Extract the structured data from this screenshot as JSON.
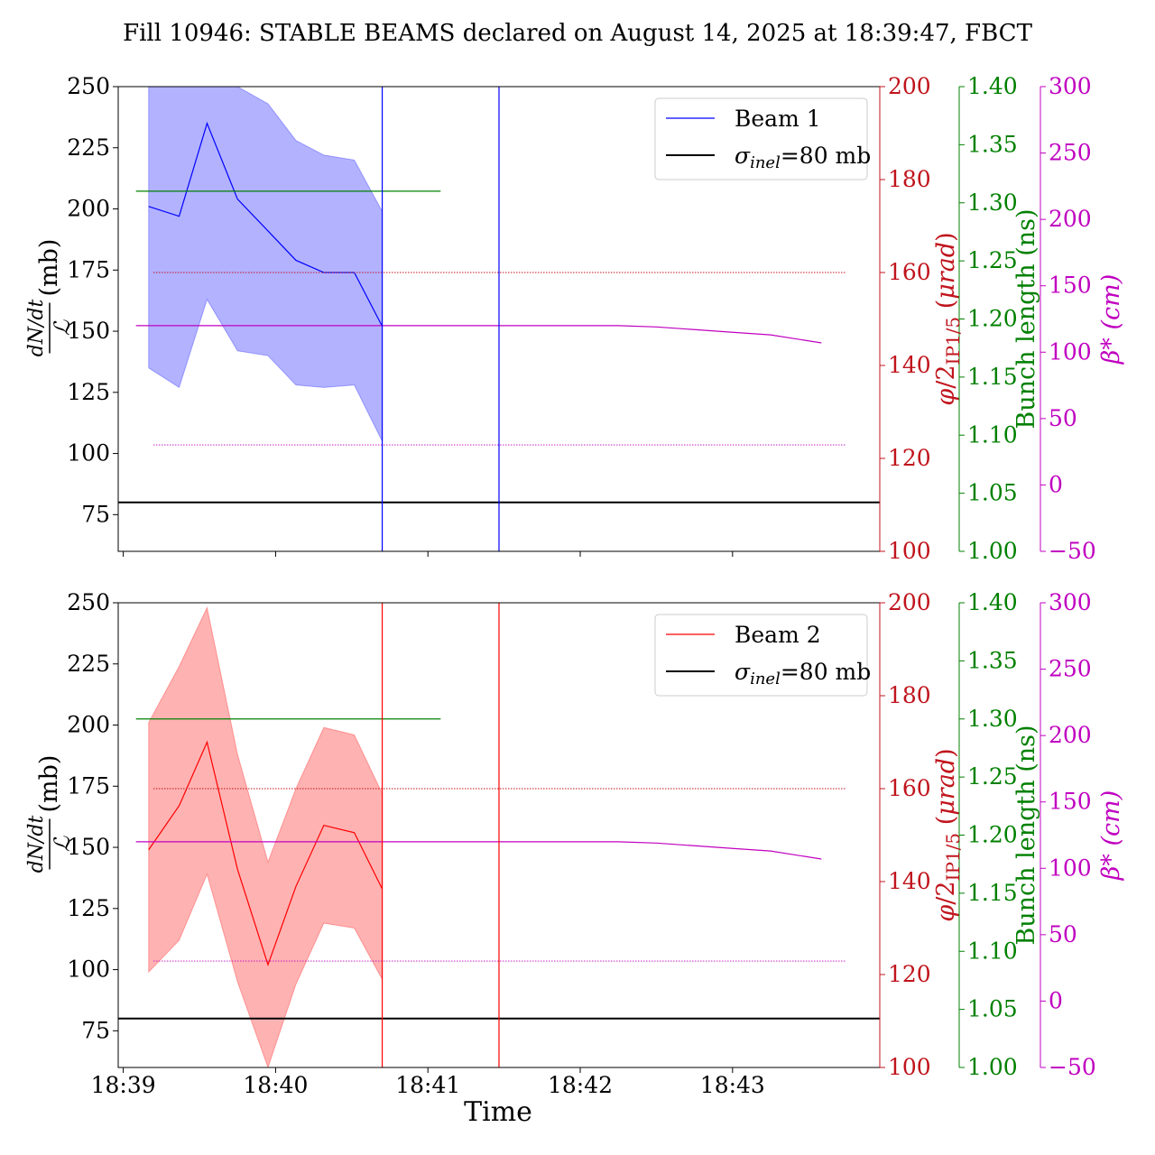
{
  "figure": {
    "title": "Fill 10946: STABLE BEAMS declared on August 14, 2025 at 18:39:47, FBCT"
  },
  "chart_data": [
    {
      "type": "line",
      "panel": "top",
      "xlabel": "",
      "x_ticks": [
        "18:39",
        "18:40",
        "18:41",
        "18:42",
        "18:43"
      ],
      "x_range": [
        "18:38:58",
        "18:43:58"
      ],
      "axes": {
        "left": {
          "label": "dN/dt / ℒ (mb)",
          "ylim": [
            60,
            250
          ],
          "ticks": [
            75,
            100,
            125,
            150,
            175,
            200,
            225,
            250
          ],
          "color": "#000000"
        },
        "right1": {
          "label": "φ/2 IP1/5 (μrad)",
          "ylim": [
            100,
            200
          ],
          "ticks": [
            100,
            120,
            140,
            160,
            180,
            200
          ],
          "color": "#c0141c"
        },
        "right2": {
          "label": "Bunch length (ns)",
          "ylim": [
            1.0,
            1.4
          ],
          "ticks": [
            "1.00",
            "1.05",
            "1.10",
            "1.15",
            "1.20",
            "1.25",
            "1.30",
            "1.35",
            "1.40"
          ],
          "color": "#008000"
        },
        "right3": {
          "label": "β* (cm)",
          "ylim": [
            -50,
            300
          ],
          "ticks": [
            "−50",
            "0",
            "50",
            "100",
            "150",
            "200",
            "250",
            "300"
          ],
          "color": "#c000c0"
        }
      },
      "legend": {
        "placement": "upper-right",
        "entries": [
          "Beam 1",
          "σinel=80 mb"
        ]
      },
      "series": [
        {
          "name": "Beam 1",
          "axis": "left",
          "color": "#0000ff",
          "x": [
            "18:39:10",
            "18:39:22",
            "18:39:33",
            "18:39:45",
            "18:39:57",
            "18:40:08",
            "18:40:19",
            "18:40:31",
            "18:40:42"
          ],
          "y": [
            201,
            197,
            235,
            204,
            191,
            179,
            174,
            174,
            152
          ],
          "band_upper": [
            250,
            250,
            250,
            250,
            243,
            228,
            222,
            220,
            199
          ],
          "band_lower": [
            135,
            127,
            163,
            142,
            140,
            128,
            127,
            128,
            105
          ]
        },
        {
          "name": "σinel=80 mb",
          "axis": "left",
          "color": "#000000",
          "constant": 80
        },
        {
          "axis": "right2",
          "color": "#008000",
          "x": [
            "18:39:05",
            "18:41:05"
          ],
          "y": [
            1.31,
            1.31
          ]
        },
        {
          "axis": "right3",
          "color": "#c000c0",
          "x": [
            "18:39:05",
            "18:42:15",
            "18:42:30",
            "18:42:45",
            "18:43:00",
            "18:43:15",
            "18:43:25",
            "18:43:35"
          ],
          "y": [
            120,
            120,
            119,
            117,
            115,
            113,
            110,
            107
          ]
        }
      ],
      "reference_lines": [
        {
          "axis": "right1",
          "value": 160,
          "color": "#c0141c",
          "style": "dotted"
        },
        {
          "axis": "left",
          "value": 103.5,
          "color": "#c000c0",
          "style": "dotted"
        }
      ],
      "vertical_markers": [
        {
          "x": "18:40:42",
          "color": "#0000ff"
        },
        {
          "x": "18:41:28",
          "color": "#0000ff"
        }
      ]
    },
    {
      "type": "line",
      "panel": "bottom",
      "xlabel": "Time",
      "x_ticks": [
        "18:39",
        "18:40",
        "18:41",
        "18:42",
        "18:43"
      ],
      "x_range": [
        "18:38:58",
        "18:43:58"
      ],
      "axes": {
        "left": {
          "label": "dN/dt / ℒ (mb)",
          "ylim": [
            60,
            250
          ],
          "ticks": [
            75,
            100,
            125,
            150,
            175,
            200,
            225,
            250
          ],
          "color": "#000000"
        },
        "right1": {
          "label": "φ/2 IP1/5 (μrad)",
          "ylim": [
            100,
            200
          ],
          "ticks": [
            100,
            120,
            140,
            160,
            180,
            200
          ],
          "color": "#c0141c"
        },
        "right2": {
          "label": "Bunch length (ns)",
          "ylim": [
            1.0,
            1.4
          ],
          "ticks": [
            "1.00",
            "1.05",
            "1.10",
            "1.15",
            "1.20",
            "1.25",
            "1.30",
            "1.35",
            "1.40"
          ],
          "color": "#008000"
        },
        "right3": {
          "label": "β* (cm)",
          "ylim": [
            -50,
            300
          ],
          "ticks": [
            "−50",
            "0",
            "50",
            "100",
            "150",
            "200",
            "250",
            "300"
          ],
          "color": "#c000c0"
        }
      },
      "legend": {
        "placement": "upper-right",
        "entries": [
          "Beam 2",
          "σinel=80 mb"
        ]
      },
      "series": [
        {
          "name": "Beam 2",
          "axis": "left",
          "color": "#ff0000",
          "x": [
            "18:39:10",
            "18:39:22",
            "18:39:33",
            "18:39:45",
            "18:39:57",
            "18:40:08",
            "18:40:19",
            "18:40:31",
            "18:40:42"
          ],
          "y": [
            149,
            167,
            193,
            141,
            102,
            134,
            159,
            156,
            133
          ],
          "band_upper": [
            201,
            224,
            248,
            188,
            144,
            174,
            199,
            196,
            172
          ],
          "band_lower": [
            99,
            112,
            139,
            95,
            60,
            94,
            119,
            117,
            96
          ]
        },
        {
          "name": "σinel=80 mb",
          "axis": "left",
          "color": "#000000",
          "constant": 80
        },
        {
          "axis": "right2",
          "color": "#008000",
          "x": [
            "18:39:05",
            "18:41:05"
          ],
          "y": [
            1.3,
            1.3
          ]
        },
        {
          "axis": "right3",
          "color": "#c000c0",
          "x": [
            "18:39:05",
            "18:42:15",
            "18:42:30",
            "18:42:45",
            "18:43:00",
            "18:43:15",
            "18:43:25",
            "18:43:35"
          ],
          "y": [
            120,
            120,
            119,
            117,
            115,
            113,
            110,
            107
          ]
        }
      ],
      "reference_lines": [
        {
          "axis": "right1",
          "value": 160,
          "color": "#c0141c",
          "style": "dotted"
        },
        {
          "axis": "left",
          "value": 103.5,
          "color": "#c000c0",
          "style": "dotted"
        }
      ],
      "vertical_markers": [
        {
          "x": "18:40:42",
          "color": "#ff0000"
        },
        {
          "x": "18:41:28",
          "color": "#ff0000"
        }
      ]
    }
  ]
}
